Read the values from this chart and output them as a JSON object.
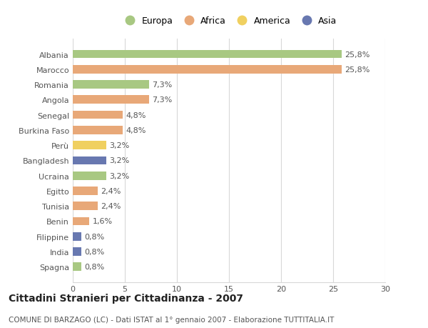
{
  "countries": [
    "Albania",
    "Marocco",
    "Romania",
    "Angola",
    "Senegal",
    "Burkina Faso",
    "Perù",
    "Bangladesh",
    "Ucraina",
    "Egitto",
    "Tunisia",
    "Benin",
    "Filippine",
    "India",
    "Spagna"
  ],
  "values": [
    25.8,
    25.8,
    7.3,
    7.3,
    4.8,
    4.8,
    3.2,
    3.2,
    3.2,
    2.4,
    2.4,
    1.6,
    0.8,
    0.8,
    0.8
  ],
  "labels": [
    "25,8%",
    "25,8%",
    "7,3%",
    "7,3%",
    "4,8%",
    "4,8%",
    "3,2%",
    "3,2%",
    "3,2%",
    "2,4%",
    "2,4%",
    "1,6%",
    "0,8%",
    "0,8%",
    "0,8%"
  ],
  "colors": [
    "#a8c882",
    "#e8a878",
    "#a8c882",
    "#e8a878",
    "#e8a878",
    "#e8a878",
    "#f0d060",
    "#6878b0",
    "#a8c882",
    "#e8a878",
    "#e8a878",
    "#e8a878",
    "#6878b0",
    "#6878b0",
    "#a8c882"
  ],
  "legend_labels": [
    "Europa",
    "Africa",
    "America",
    "Asia"
  ],
  "legend_colors": [
    "#a8c882",
    "#e8a878",
    "#f0d060",
    "#6878b0"
  ],
  "xlim": [
    0,
    30
  ],
  "xticks": [
    0,
    5,
    10,
    15,
    20,
    25,
    30
  ],
  "title": "Cittadini Stranieri per Cittadinanza - 2007",
  "subtitle": "COMUNE DI BARZAGO (LC) - Dati ISTAT al 1° gennaio 2007 - Elaborazione TUTTITALIA.IT",
  "bg_color": "#ffffff",
  "grid_color": "#d8d8d8",
  "bar_height": 0.55,
  "label_fontsize": 8,
  "tick_fontsize": 8,
  "title_fontsize": 10,
  "subtitle_fontsize": 7.5
}
